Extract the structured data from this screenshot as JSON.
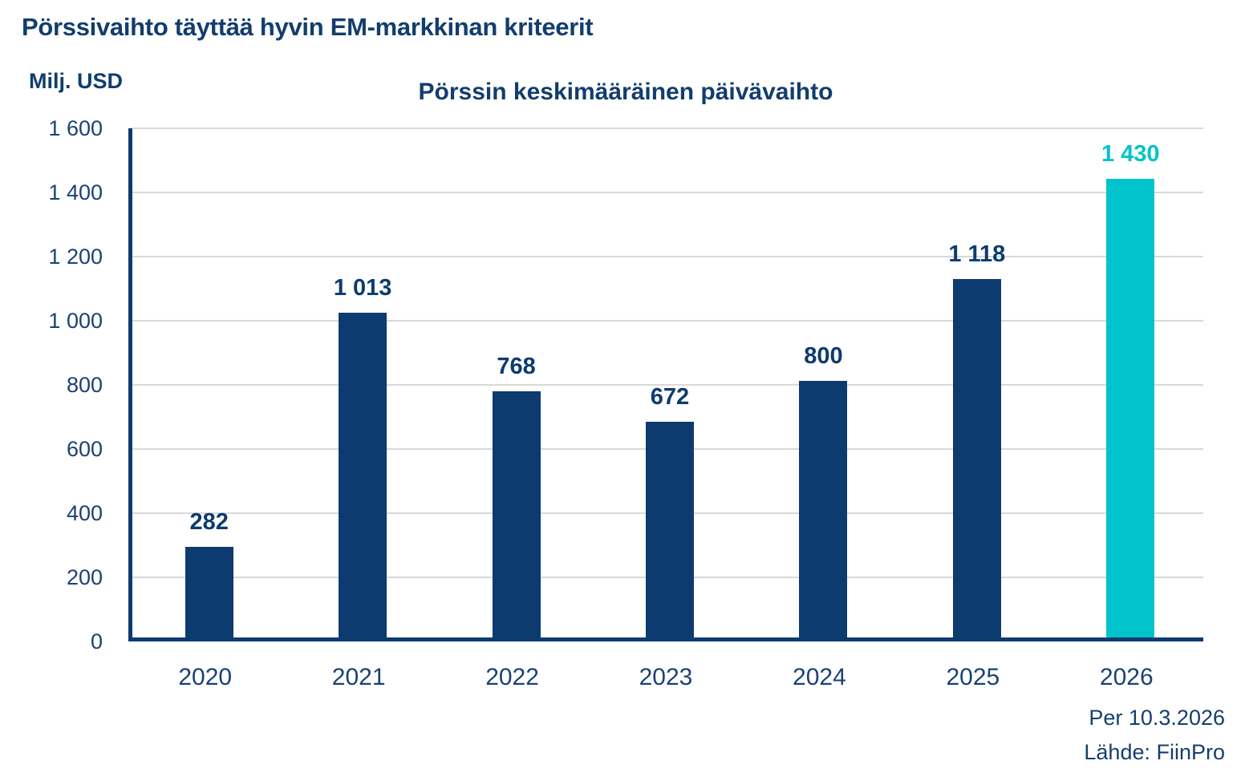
{
  "page_title": "Pörssivaihto täyttää hyvin EM-markkinan kriteerit",
  "y_axis_unit_label": "Milj. USD",
  "footnote": {
    "line1": "Per 10.3.2026",
    "line2": "Lähde: FiinPro"
  },
  "chart_data": {
    "type": "bar",
    "title": "Pörssin keskimääräinen päivävaihto",
    "categories": [
      "2020",
      "2021",
      "2022",
      "2023",
      "2024",
      "2025",
      "2026"
    ],
    "values": [
      282,
      1013,
      768,
      672,
      800,
      1118,
      1430
    ],
    "value_labels": [
      "282",
      "1 013",
      "768",
      "672",
      "800",
      "1 118",
      "1 430"
    ],
    "highlight_index": 6,
    "ylabel": "Milj. USD",
    "xlabel": "",
    "ylim": [
      0,
      1600
    ],
    "ytick_step": 200,
    "ytick_labels": [
      "0",
      "200",
      "400",
      "600",
      "800",
      "1 000",
      "1 200",
      "1 400",
      "1 600"
    ],
    "grid": true,
    "legend": false,
    "colors": {
      "bar": "#0d3b6f",
      "highlight_bar": "#00c3cc",
      "axis": "#0d3b6f",
      "grid": "#d9d9d9",
      "text": "#123d6e"
    }
  }
}
